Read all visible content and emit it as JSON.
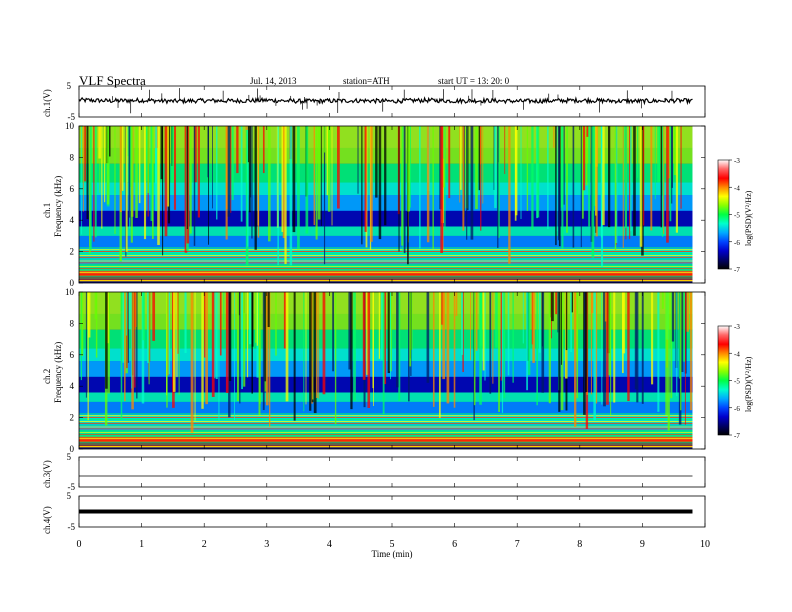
{
  "header": {
    "title": "VLF  Spectra",
    "date": "Jul.  14,  2013",
    "station": "station=ATH",
    "start": "start  UT  =   13: 20: 0"
  },
  "panels": {
    "ch1_wave": {
      "label": "ch.1(V)",
      "yticks": [
        "5",
        "-5"
      ]
    },
    "ch1_spec": {
      "label_ch": "ch.1",
      "label_freq": "Frequency  (kHz)"
    },
    "ch2_spec": {
      "label_ch": "ch.2",
      "label_freq": "Frequency  (kHz)"
    },
    "ch3_wave": {
      "label": "ch.3(V)",
      "yticks": [
        "5",
        "-5"
      ]
    },
    "ch4_wave": {
      "label": "ch.4(V)",
      "yticks": [
        "5",
        "-5"
      ]
    }
  },
  "colorbar": {
    "label": "log(PSD)(V²/Hz)",
    "ticks": [
      "-3",
      "-4",
      "-5",
      "-6",
      "-7"
    ],
    "colors": [
      "#ffffff",
      "#ff6666",
      "#ff0000",
      "#ff8800",
      "#ffff00",
      "#88ff00",
      "#00ff44",
      "#00ffcc",
      "#00aaff",
      "#0044ff",
      "#0000cc",
      "#000066",
      "#000000"
    ]
  },
  "chart_data": [
    {
      "type": "line",
      "name": "ch.1 waveform",
      "ylabel": "ch.1(V)",
      "ylim": [
        -5,
        5
      ],
      "xlim": [
        0,
        10
      ],
      "x": [
        0,
        0.5,
        1,
        1.5,
        2,
        2.5,
        3,
        3.5,
        4,
        4.5,
        5,
        5.5,
        6,
        6.5,
        7,
        7.5,
        8,
        8.5,
        9,
        9.5,
        9.8
      ],
      "values": [
        0.5,
        0.2,
        0.4,
        0.1,
        0.3,
        0.2,
        0.4,
        0.1,
        0.2,
        0.3,
        0.1,
        0.4,
        0.2,
        0.3,
        0.1,
        0.2,
        0.4,
        0.2,
        0.1,
        0.3,
        0.2
      ]
    },
    {
      "type": "heatmap",
      "name": "ch.1 spectrogram",
      "ylabel": "Frequency  (kHz)",
      "ylim": [
        0,
        10
      ],
      "xlim": [
        0,
        10
      ],
      "yticks": [
        "0",
        "2",
        "4",
        "6",
        "8",
        "10"
      ],
      "color_range": [
        -7,
        -3
      ]
    },
    {
      "type": "heatmap",
      "name": "ch.2 spectrogram",
      "ylabel": "Frequency  (kHz)",
      "ylim": [
        0,
        10
      ],
      "xlim": [
        0,
        10
      ],
      "yticks": [
        "0",
        "2",
        "4",
        "6",
        "8",
        "10"
      ],
      "color_range": [
        -7,
        -3
      ]
    },
    {
      "type": "line",
      "name": "ch.3 waveform",
      "ylabel": "ch.3(V)",
      "ylim": [
        -5,
        5
      ],
      "xlim": [
        0,
        10
      ],
      "x": [
        0,
        9.8
      ],
      "values": [
        0,
        0
      ]
    },
    {
      "type": "line",
      "name": "ch.4 waveform",
      "ylabel": "ch.4(V)",
      "ylim": [
        -5,
        5
      ],
      "xlim": [
        0,
        10
      ],
      "x": [
        0,
        9.8
      ],
      "values": [
        0,
        0
      ]
    }
  ],
  "xaxis": {
    "label": "Time  (min)",
    "ticks": [
      "0",
      "1",
      "2",
      "3",
      "4",
      "5",
      "6",
      "7",
      "8",
      "9",
      "10"
    ]
  }
}
